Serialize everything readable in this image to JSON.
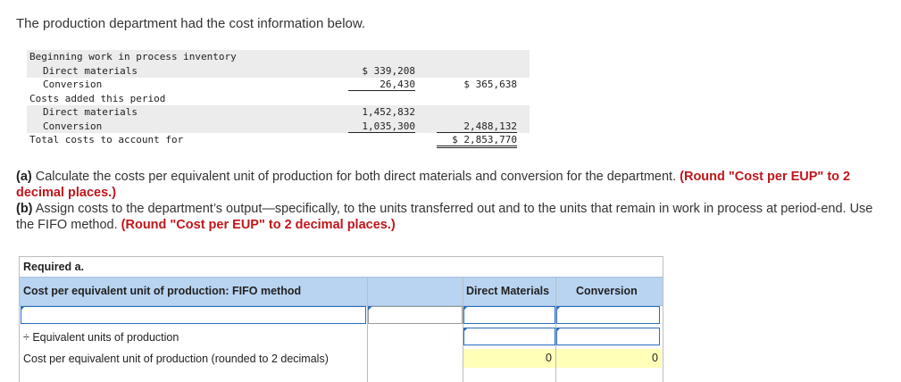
{
  "intro": "The production department had the cost information below.",
  "cost_table": {
    "beginning_label": "Beginning work in process inventory",
    "bwip_dm_label": "Direct materials",
    "bwip_dm_value": "$ 339,208",
    "bwip_conv_label": "Conversion",
    "bwip_conv_value": "26,430",
    "bwip_total": "$ 365,638",
    "added_label": "Costs added this period",
    "added_dm_label": "Direct materials",
    "added_dm_value": "1,452,832",
    "added_conv_label": "Conversion",
    "added_conv_value": "1,035,300",
    "added_total": "2,488,132",
    "total_label": "Total costs to account for",
    "total_value": "$ 2,853,770"
  },
  "questions": {
    "a_tag": "(a)",
    "a_text": " Calculate the costs per equivalent unit of production for both direct materials and conversion for the department.",
    "a_round": "(Round \"Cost per EUP\" to 2 decimal places.)",
    "b_tag": "(b)",
    "b_text": " Assign costs to the department’s output—specifically, to the units transferred out and to the units that remain in work in process at period-end. Use the FIFO method.",
    "b_round": "(Round \"Cost per EUP\" to 2 decimal places.)"
  },
  "required_table": {
    "title": "Required a.",
    "header": "Cost per equivalent unit of production: FIFO method",
    "col_dm": "Direct Materials",
    "col_conv": "Conversion",
    "row_eup_label": "÷ Equivalent units of production",
    "row_cost_label": "Cost per equivalent unit of production (rounded to 2 decimals)",
    "dm_cost_value": "0",
    "conv_cost_value": "0"
  }
}
